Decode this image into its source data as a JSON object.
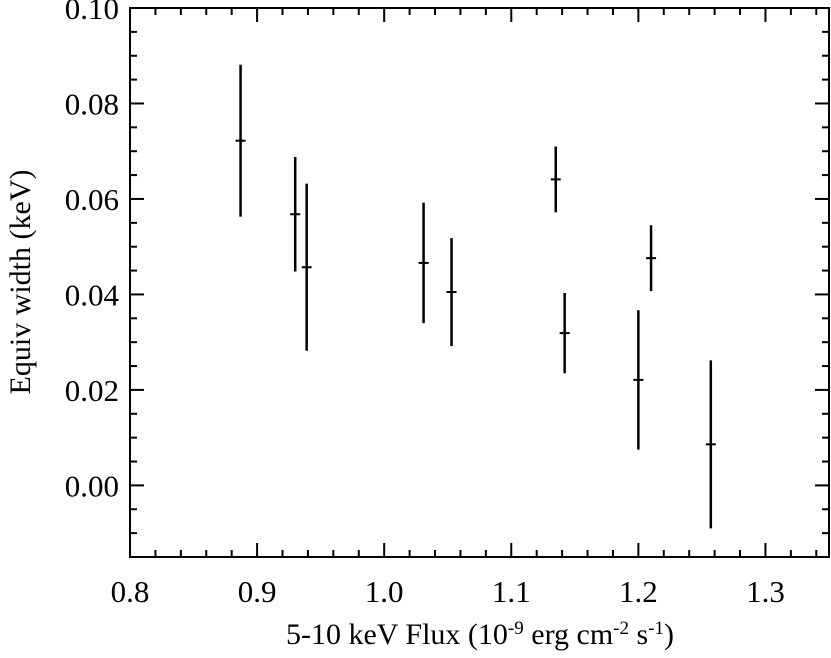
{
  "chart_data": {
    "type": "errorbar-scatter",
    "x_label": [
      "5-10 keV Flux (10",
      "-9",
      " erg cm",
      "-2",
      " s",
      "-1",
      ")"
    ],
    "y_label": "Equiv width (keV)",
    "xlim": [
      0.8,
      1.35
    ],
    "ylim": [
      -0.015,
      0.1
    ],
    "xticks": [
      0.8,
      0.9,
      {
        "value": 1,
        "label": "1.0"
      },
      1.1,
      1.2,
      1.3
    ],
    "yticks": [
      {
        "value": 0,
        "label": "0.00"
      },
      {
        "value": 0.02,
        "label": "0.02"
      },
      {
        "value": 0.04,
        "label": "0.04"
      },
      {
        "value": 0.06,
        "label": "0.06"
      },
      {
        "value": 0.08,
        "label": "0.08"
      },
      {
        "value": 0.1,
        "label": "0.10"
      }
    ],
    "xminorticks": [
      0.82,
      0.84,
      0.86,
      0.88,
      0.92,
      0.94,
      0.96,
      0.98,
      1.02,
      1.04,
      1.06,
      1.08,
      1.12,
      1.14,
      1.16,
      1.18,
      1.22,
      1.24,
      1.26,
      1.28,
      1.32,
      1.34
    ],
    "yminorticks": [
      -0.015,
      -0.01,
      -0.005,
      0.005,
      0.01,
      0.015,
      0.025,
      0.03,
      0.035,
      0.045,
      0.05,
      0.055,
      0.065,
      0.07,
      0.075,
      0.085,
      0.09,
      0.095
    ],
    "color": "#000000",
    "x": [
      0.887,
      0.93,
      0.939,
      1.031,
      1.053,
      1.135,
      1.142,
      1.2,
      1.21,
      1.257
    ],
    "values": [
      0.0722,
      0.0568,
      0.0457,
      0.0466,
      0.0405,
      0.0641,
      0.0319,
      0.0221,
      0.0476,
      0.0086
    ],
    "errors": [
      0.0159,
      0.012,
      0.0175,
      0.0126,
      0.0113,
      0.0069,
      0.0084,
      0.0146,
      0.0069,
      0.0176
    ]
  }
}
